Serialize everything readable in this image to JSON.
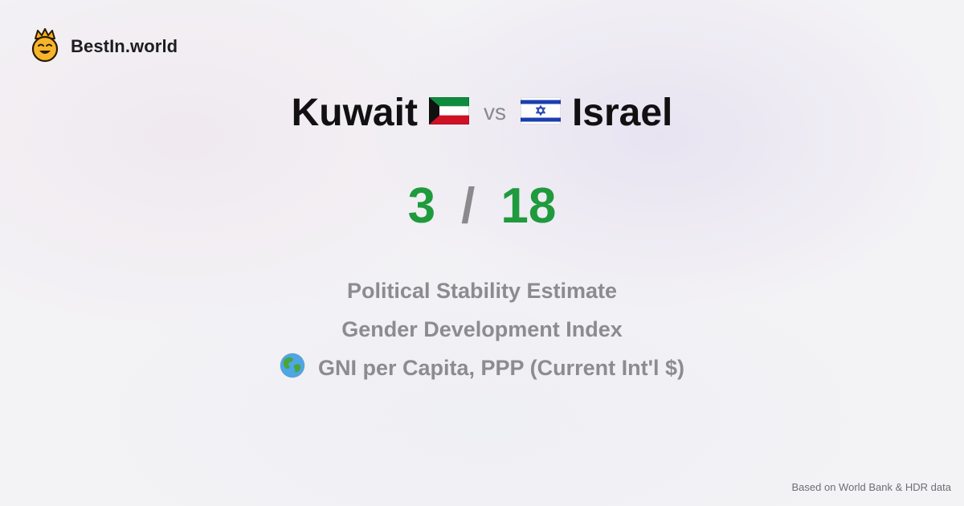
{
  "brand": {
    "name": "BestIn.world",
    "logo_icon": "crowned-smiley-icon"
  },
  "comparison": {
    "left_country": "Kuwait",
    "left_flag_icon": "kuwait-flag-icon",
    "vs_label": "vs",
    "right_flag_icon": "israel-flag-icon",
    "right_country": "Israel"
  },
  "score": {
    "left": "3",
    "separator": "/",
    "right": "18"
  },
  "metrics": [
    {
      "label": "Political Stability Estimate"
    },
    {
      "label": "Gender Development Index"
    },
    {
      "label": "GNI per Capita, PPP (Current Int'l $)",
      "icon": "globe-icon"
    }
  ],
  "footer": {
    "source": "Based on World Bank & HDR data"
  },
  "colors": {
    "score": "#1f9a3d",
    "muted": "#8c8c90",
    "title": "#111111"
  }
}
